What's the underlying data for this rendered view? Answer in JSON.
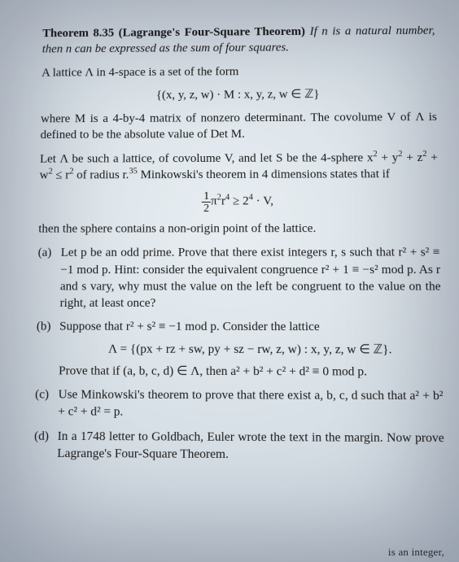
{
  "theorem": {
    "label": "Theorem 8.35 (Lagrange's Four-Square Theorem)",
    "statement_part1": "If n is a natural number, then n can be expressed as the sum of four squares."
  },
  "p1": "A lattice Λ in 4-space is a set of the form",
  "eq1": "{(x, y, z, w) · M : x, y, z, w ∈ ℤ}",
  "p2": "where M is a 4-by-4 matrix of nonzero determinant. The covolume V of Λ is defined to be the absolute value of Det M.",
  "p3_a": "Let Λ be such a lattice, of covolume V, and let S be the 4-sphere x",
  "p3_b": " + y",
  "p3_c": " + z",
  "p3_d": " + w",
  "p3_e": " ≤ r",
  "p3_f": " of radius r.",
  "fn": "35",
  "p3_g": " Minkowski's theorem in 4 dimensions states that if",
  "eq2_a": "π",
  "eq2_b": "r",
  "eq2_c": " ≥ 2",
  "eq2_d": " · V,",
  "p4": "then the sphere contains a non-origin point of the lattice.",
  "items": {
    "a_m": "(a)",
    "a": "Let p be an odd prime. Prove that there exist integers r, s such that r² + s² ≡ −1 mod p. Hint: consider the equivalent congruence r² + 1 ≡ −s² mod p. As r and s vary, why must the value on the left be congruent to the value on the right, at least once?",
    "b_m": "(b)",
    "b1": "Suppose that r² + s² ≡ −1 mod p. Consider the lattice",
    "b_eq": "Λ = {(px + rz + sw, py + sz − rw, z, w) : x, y, z, w ∈ ℤ}.",
    "b2": "Prove that if (a, b, c, d) ∈ Λ, then a² + b² + c² + d² ≡ 0 mod p.",
    "c_m": "(c)",
    "c": "Use Minkowski's theorem to prove that there exist a, b, c, d such that a² + b² + c² + d² = p.",
    "d_m": "(d)",
    "d": "In a 1748 letter to Goldbach, Euler wrote the text in the margin. Now prove Lagrange's Four-Square Theorem."
  },
  "cutoff": "is an integer,"
}
